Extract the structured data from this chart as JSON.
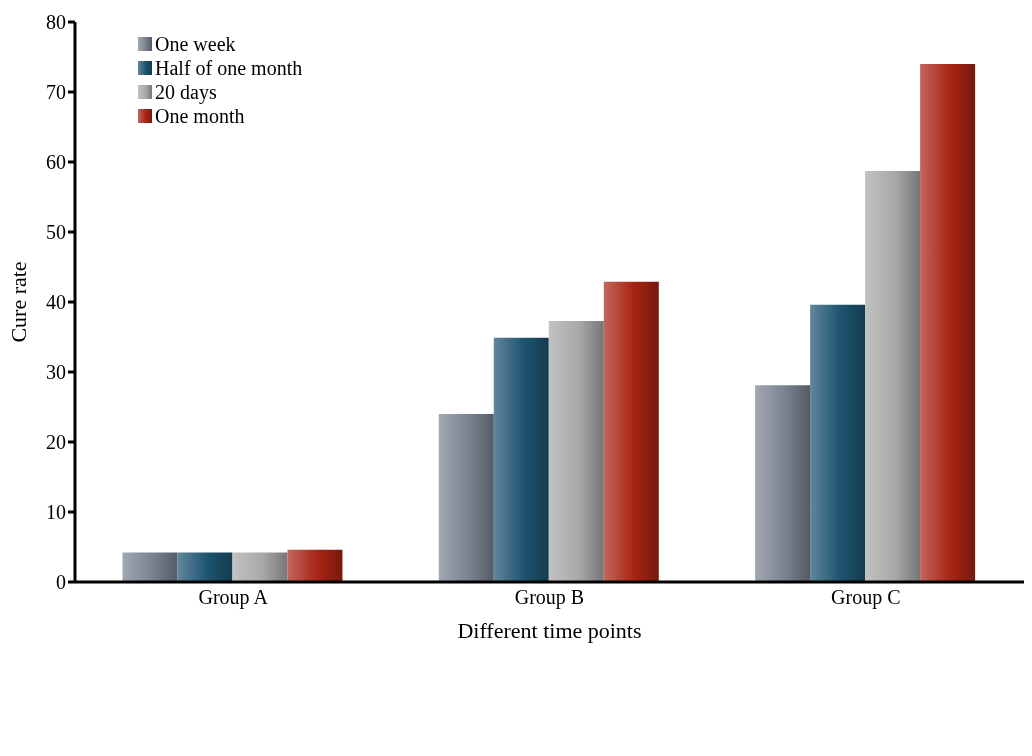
{
  "chart_data": {
    "type": "bar",
    "xlabel": "Different time points",
    "ylabel": "Cure rate",
    "categories": [
      "Group A",
      "Group B",
      "Group C"
    ],
    "series": [
      {
        "name": "One week",
        "color": "#7a8290",
        "values": [
          4.2,
          24.0,
          28.1
        ]
      },
      {
        "name": "Half of one month",
        "color": "#1d5470",
        "values": [
          4.2,
          34.9,
          39.6
        ]
      },
      {
        "name": "20 days",
        "color": "#a8a8a8",
        "values": [
          4.2,
          37.3,
          58.7
        ]
      },
      {
        "name": "One month",
        "color": "#a82414",
        "values": [
          4.6,
          42.9,
          74.0
        ]
      }
    ],
    "ylim": [
      0,
      80
    ],
    "yticks": [
      0,
      10,
      20,
      30,
      40,
      50,
      60,
      70,
      80
    ],
    "grid": false,
    "legend": "top left"
  }
}
